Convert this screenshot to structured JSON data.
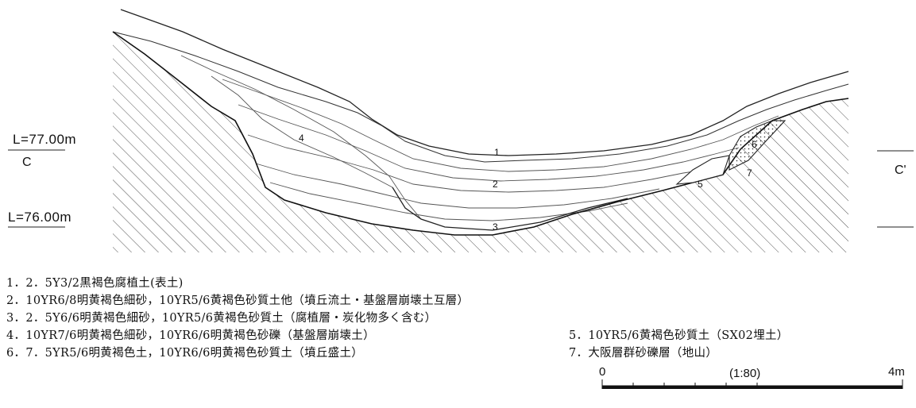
{
  "elevations": {
    "upper": "L=77.00m",
    "lower": "L=76.00m"
  },
  "section": {
    "left": "C",
    "right": "C'"
  },
  "layer_numbers": [
    "1",
    "2",
    "3",
    "4",
    "5",
    "6",
    "7"
  ],
  "legend": [
    "1．2．5Y3/2黒褐色腐植土(表土)",
    "2．10YR6/8明黄褐色細砂，10YR5/6黄褐色砂質土他（墳丘流土・基盤層崩壊土互層）",
    "3．2．5Y6/6明黄褐色細砂，10YR5/6黄褐色砂質土（腐植層・炭化物多く含む）",
    "4．10YR7/6明黄褐色細砂，10YR6/6明黄褐色砂礫（基盤層崩壊土）",
    "5．10YR5/6黄褐色砂質土（SX02埋土）",
    "6．7．5YR5/6明黄褐色土，10YR6/6明黄褐色砂質土（墳丘盛土）",
    "7．大阪層群砂礫層（地山）"
  ],
  "scale": {
    "start": "0",
    "end": "4m",
    "ratio": "(1:80)"
  }
}
